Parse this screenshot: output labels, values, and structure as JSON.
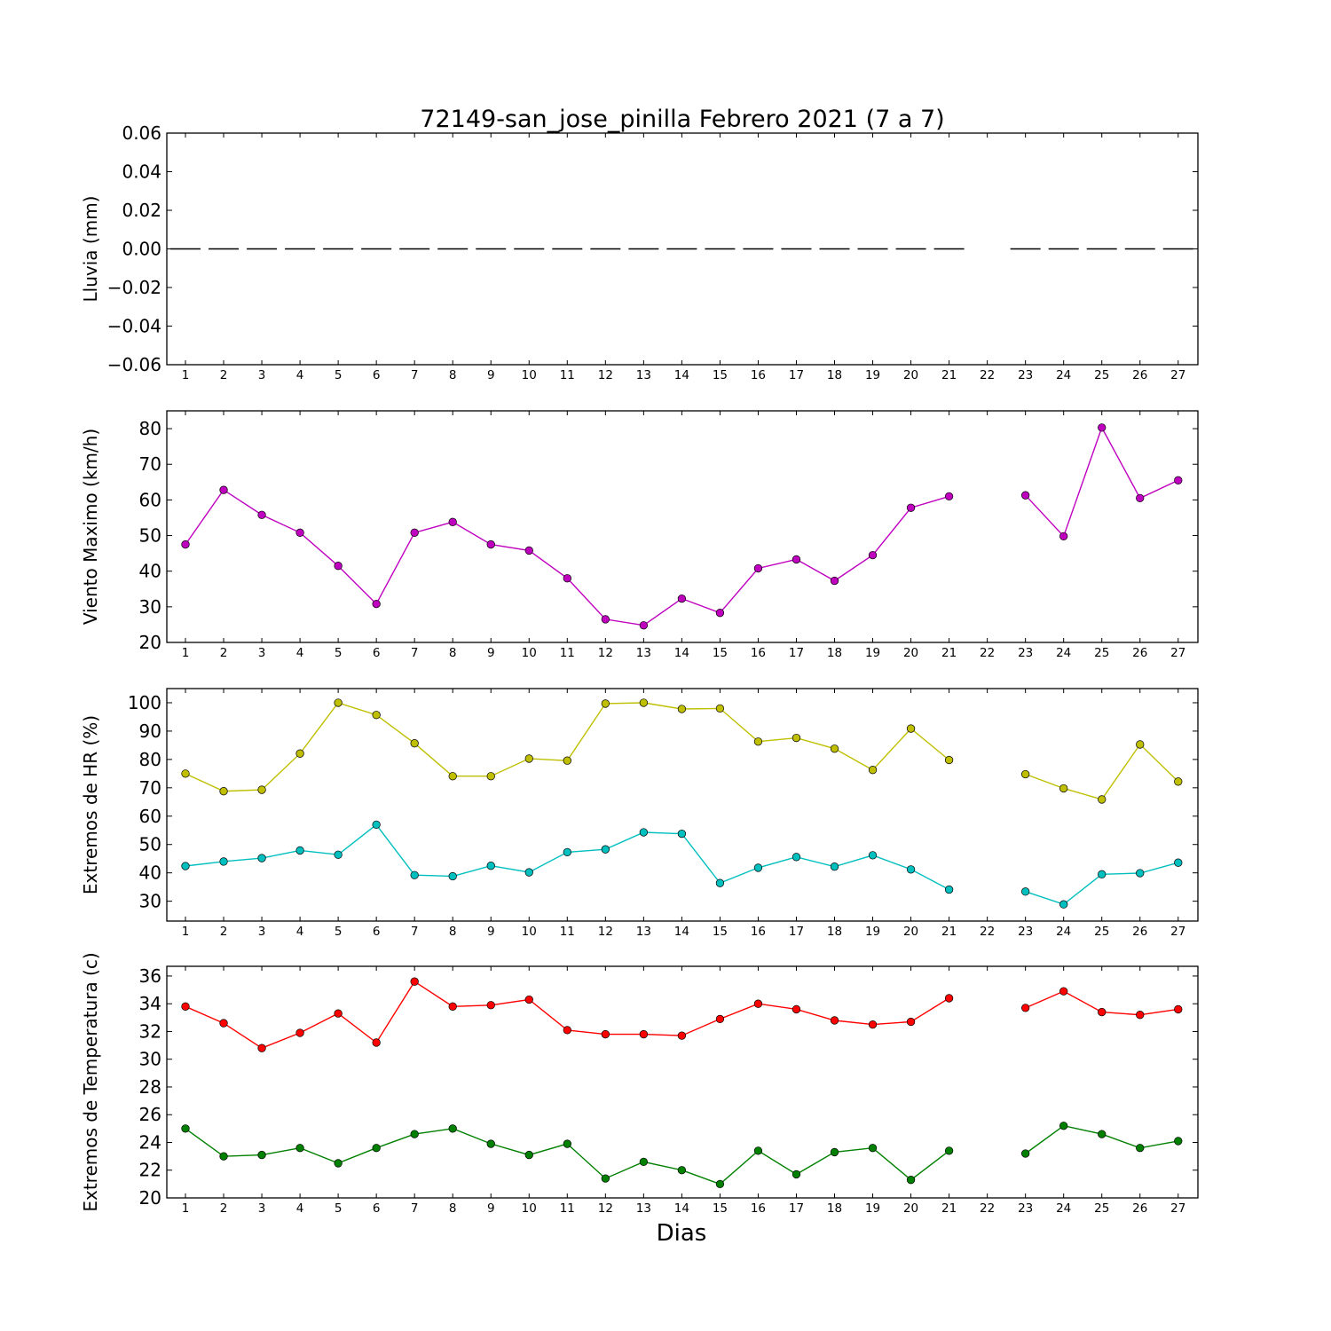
{
  "chart_data": [
    {
      "type": "line",
      "title": "72149-san_jose_pinilla Febrero 2021  (7 a 7)",
      "ylabel": "Lluvia (mm)",
      "xlabel": "",
      "ylim": [
        -0.06,
        0.06
      ],
      "yticks": [
        "0.06",
        "0.04",
        "0.02",
        "0.00",
        "−0.02",
        "−0.04",
        "−0.06"
      ],
      "ytick_values": [
        0.06,
        0.04,
        0.02,
        0.0,
        -0.02,
        -0.04,
        -0.06
      ],
      "x": [
        1,
        2,
        3,
        4,
        5,
        6,
        7,
        8,
        9,
        10,
        11,
        12,
        13,
        14,
        15,
        16,
        17,
        18,
        19,
        20,
        21,
        22,
        23,
        24,
        25,
        26,
        27
      ],
      "series": [
        {
          "style": "bar-step",
          "color": "#000000",
          "values": [
            0,
            0,
            0,
            0,
            0,
            0,
            0,
            0,
            0,
            0,
            0,
            0,
            0,
            0,
            0,
            0,
            0,
            0,
            0,
            0,
            0,
            null,
            0,
            0,
            0,
            0,
            0
          ]
        }
      ]
    },
    {
      "type": "line",
      "title": "",
      "ylabel": "Viento Maximo (km/h)",
      "xlabel": "",
      "ylim": [
        20,
        85
      ],
      "yticks": [
        "80",
        "70",
        "60",
        "50",
        "40",
        "30",
        "20"
      ],
      "ytick_values": [
        80,
        70,
        60,
        50,
        40,
        30,
        20
      ],
      "x": [
        1,
        2,
        3,
        4,
        5,
        6,
        7,
        8,
        9,
        10,
        11,
        12,
        13,
        14,
        15,
        16,
        17,
        18,
        19,
        20,
        21,
        22,
        23,
        24,
        25,
        26,
        27
      ],
      "series": [
        {
          "color": "#bf00bf",
          "values": [
            47.5,
            62.8,
            55.8,
            50.8,
            41.5,
            30.8,
            50.8,
            53.8,
            47.5,
            45.8,
            38.0,
            26.5,
            24.8,
            32.3,
            28.3,
            40.8,
            43.3,
            37.3,
            44.5,
            57.8,
            61.0,
            null,
            61.3,
            49.8,
            80.3,
            60.5,
            65.5
          ]
        }
      ]
    },
    {
      "type": "line",
      "title": "",
      "ylabel": "Extremos de HR (%)",
      "xlabel": "",
      "ylim": [
        23,
        105
      ],
      "yticks": [
        "100",
        "90",
        "80",
        "70",
        "60",
        "50",
        "40",
        "30"
      ],
      "ytick_values": [
        100,
        90,
        80,
        70,
        60,
        50,
        40,
        30
      ],
      "x": [
        1,
        2,
        3,
        4,
        5,
        6,
        7,
        8,
        9,
        10,
        11,
        12,
        13,
        14,
        15,
        16,
        17,
        18,
        19,
        20,
        21,
        22,
        23,
        24,
        25,
        26,
        27
      ],
      "series": [
        {
          "color": "#bfbf00",
          "values": [
            75.0,
            68.8,
            69.3,
            82.1,
            100.0,
            95.7,
            85.7,
            74.1,
            74.1,
            80.3,
            79.6,
            99.7,
            100.0,
            97.8,
            98.0,
            86.3,
            87.6,
            83.8,
            76.3,
            90.9,
            79.8,
            null,
            74.8,
            69.8,
            65.9,
            85.3,
            72.2
          ]
        },
        {
          "color": "#00bfbf",
          "values": [
            42.4,
            44.0,
            45.2,
            47.9,
            46.4,
            57.0,
            39.2,
            38.8,
            42.5,
            40.2,
            47.3,
            48.3,
            54.3,
            53.8,
            36.4,
            41.8,
            45.6,
            42.2,
            46.2,
            41.2,
            34.1,
            null,
            33.4,
            28.9,
            39.5,
            39.9,
            43.6
          ]
        }
      ]
    },
    {
      "type": "line",
      "title": "",
      "ylabel": "Extremos de Temperatura (c)",
      "xlabel": "Dias",
      "ylim": [
        20,
        36.7
      ],
      "yticks": [
        "36",
        "34",
        "32",
        "30",
        "28",
        "26",
        "24",
        "22",
        "20"
      ],
      "ytick_values": [
        36,
        34,
        32,
        30,
        28,
        26,
        24,
        22,
        20
      ],
      "x": [
        1,
        2,
        3,
        4,
        5,
        6,
        7,
        8,
        9,
        10,
        11,
        12,
        13,
        14,
        15,
        16,
        17,
        18,
        19,
        20,
        21,
        22,
        23,
        24,
        25,
        26,
        27
      ],
      "series": [
        {
          "color": "#ff0000",
          "values": [
            33.8,
            32.6,
            30.8,
            31.9,
            33.3,
            31.2,
            35.6,
            33.8,
            33.9,
            34.3,
            32.1,
            31.8,
            31.8,
            31.7,
            32.9,
            34.0,
            33.6,
            32.8,
            32.5,
            32.7,
            34.4,
            null,
            33.7,
            34.9,
            33.4,
            33.2,
            33.6
          ]
        },
        {
          "color": "#008000",
          "values": [
            25.0,
            23.0,
            23.1,
            23.6,
            22.5,
            23.6,
            24.6,
            25.0,
            23.9,
            23.1,
            23.9,
            21.4,
            22.6,
            22.0,
            21.0,
            23.4,
            21.7,
            23.3,
            23.6,
            21.3,
            23.4,
            null,
            23.2,
            25.2,
            24.6,
            23.6,
            24.1
          ]
        }
      ]
    }
  ]
}
